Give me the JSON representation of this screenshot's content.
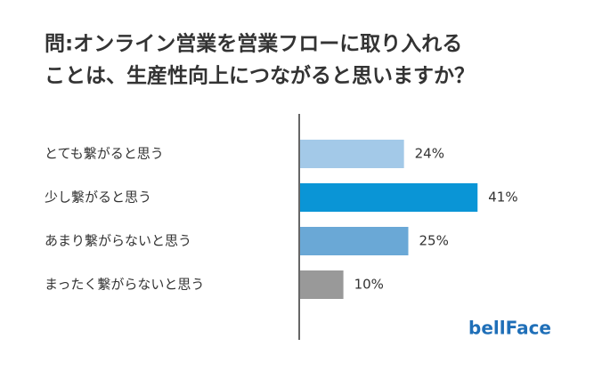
{
  "chart_data": {
    "type": "bar",
    "orientation": "horizontal",
    "title": [
      "問:オンライン営業を営業フローに取り入れる",
      "ことは、生産性向上につながると思いますか？"
    ],
    "categories": [
      "とても繋がると思う",
      "少し繋がると思う",
      "あまり繋がらないと思う",
      "まったく繋がらないと思う"
    ],
    "values": [
      24,
      41,
      25,
      10
    ],
    "value_labels": [
      "24%",
      "41%",
      "25%",
      "10%"
    ],
    "colors": [
      "#a3c9e8",
      "#0a95d6",
      "#6aa8d6",
      "#999999"
    ],
    "logo": "bellFace"
  }
}
